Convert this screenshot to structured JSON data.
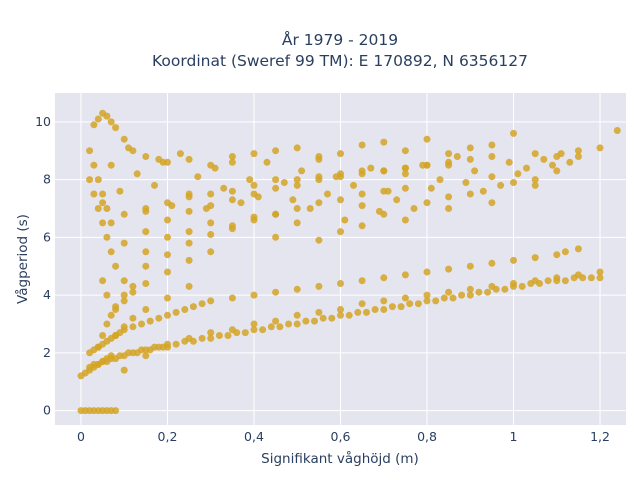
{
  "chart_data": {
    "type": "scatter",
    "title": "År 1979 - 2019",
    "subtitle": "Koordinat (Sweref 99 TM): E 170892, N 6356127",
    "xlabel": "Signifikant våghöjd (m)",
    "ylabel": "Vågperiod (s)",
    "xlim": [
      -0.06,
      1.26
    ],
    "ylim": [
      -0.5,
      11.0
    ],
    "x_tick_values": [
      0,
      0.2,
      0.4,
      0.6,
      0.8,
      1.0,
      1.2
    ],
    "x_tick_labels": [
      "0",
      "0,2",
      "0,4",
      "0,6",
      "0,8",
      "1",
      "1,2"
    ],
    "y_tick_values": [
      0,
      2,
      4,
      6,
      8,
      10
    ],
    "y_tick_labels": [
      "0",
      "2",
      "4",
      "6",
      "8",
      "10"
    ],
    "grid": true,
    "marker_color": "#d4a424",
    "plot_background": "#e5e5ef",
    "legend": "none",
    "series": [
      {
        "x": [
          0.0,
          0.01,
          0.02,
          0.03,
          0.04,
          0.05,
          0.06,
          0.07,
          0.08,
          0.0,
          0.01,
          0.02,
          0.03,
          0.04,
          0.05,
          0.06,
          0.07,
          0.02,
          0.03,
          0.04,
          0.05,
          0.06,
          0.07,
          0.08,
          0.09,
          0.1,
          0.12,
          0.14,
          0.16,
          0.18,
          0.2,
          0.22,
          0.24,
          0.26,
          0.28,
          0.3,
          0.35,
          0.4,
          0.45,
          0.5,
          0.55,
          0.6,
          0.65,
          0.7,
          0.75,
          0.8,
          0.85,
          0.9,
          0.95,
          1.0,
          1.05,
          1.1,
          1.12,
          1.15,
          0.03,
          0.04,
          0.05,
          0.06,
          0.07,
          0.08,
          0.1,
          0.12,
          0.15,
          0.18,
          0.2,
          0.25,
          0.3,
          0.35,
          0.4,
          0.45,
          0.5,
          0.55,
          0.6,
          0.65,
          0.7,
          0.75,
          0.8,
          0.85,
          0.9,
          0.95,
          1.0,
          1.05,
          1.1,
          1.15,
          1.2,
          1.24,
          0.02,
          0.03,
          0.04,
          0.05,
          0.06,
          0.07,
          0.08,
          0.02,
          0.03,
          0.04,
          0.05,
          0.06,
          0.07,
          0.05,
          0.06,
          0.1,
          0.15,
          0.2,
          0.25,
          0.3,
          0.35,
          0.4,
          0.45,
          0.5,
          0.55,
          0.6,
          0.65,
          0.7,
          0.75,
          0.8,
          0.85,
          0.1,
          0.15,
          0.2,
          0.25,
          0.3,
          0.35,
          0.4,
          0.45,
          0.5,
          0.55,
          0.6,
          0.65,
          0.7,
          0.75,
          0.8,
          0.85,
          0.9,
          0.95,
          0.1,
          0.15,
          0.2,
          0.25,
          0.3,
          0.35,
          0.4,
          0.45,
          0.5,
          0.55,
          0.6,
          0.65,
          0.7,
          0.75,
          0.08,
          0.1,
          0.12,
          0.15,
          0.2,
          0.25,
          0.3,
          0.08,
          0.1,
          0.12,
          0.15,
          0.2,
          0.25,
          0.04,
          0.05,
          0.06,
          0.07,
          0.08,
          0.1,
          0.12,
          0.1,
          0.15,
          0.2,
          0.25,
          0.3,
          0.35,
          0.4,
          0.45,
          0.5,
          0.55,
          0.6,
          0.65,
          0.7,
          0.75,
          0.8,
          0.85,
          0.9,
          0.95,
          1.0,
          1.05,
          1.1,
          1.15,
          1.2,
          0.2,
          0.3,
          0.4,
          0.5,
          0.6,
          0.7,
          0.8,
          0.9,
          1.0,
          1.1,
          0.15,
          0.25,
          0.35,
          0.45,
          0.55,
          0.65,
          0.75,
          0.85,
          0.95,
          1.05,
          0.02,
          0.03,
          0.04,
          0.05,
          0.06,
          0.07,
          0.08,
          0.09,
          0.1,
          0.11,
          0.12,
          0.13,
          0.14,
          0.15,
          0.16,
          0.17,
          0.18,
          0.19,
          0.2,
          0.22,
          0.24,
          0.26,
          0.28,
          0.3,
          0.32,
          0.34,
          0.36,
          0.38,
          0.4,
          0.42,
          0.44,
          0.46,
          0.48,
          0.5,
          0.52,
          0.54,
          0.56,
          0.58,
          0.6,
          0.62,
          0.64,
          0.66,
          0.68,
          0.7,
          0.72,
          0.74,
          0.76,
          0.78,
          0.8,
          0.82,
          0.84,
          0.86,
          0.88,
          0.9,
          0.92,
          0.94,
          0.96,
          0.98,
          1.0,
          1.02,
          1.04,
          1.06,
          1.08,
          1.1,
          1.12,
          1.14,
          1.16,
          1.18,
          1.2,
          0.05,
          0.07,
          0.09,
          0.11,
          0.13,
          0.15,
          0.17,
          0.19,
          0.21,
          0.23,
          0.25,
          0.27,
          0.29,
          0.31,
          0.33,
          0.35,
          0.37,
          0.39,
          0.41,
          0.43,
          0.45,
          0.47,
          0.49,
          0.51,
          0.53,
          0.55,
          0.57,
          0.59,
          0.61,
          0.63,
          0.65,
          0.67,
          0.69,
          0.71,
          0.73,
          0.75,
          0.77,
          0.79,
          0.81,
          0.83,
          0.85,
          0.87,
          0.89,
          0.91,
          0.93,
          0.95,
          0.97,
          0.99,
          1.01,
          1.03,
          1.05,
          1.07,
          1.09,
          1.11,
          1.13,
          1.15
        ],
        "y": [
          0.0,
          0.0,
          0.0,
          0.0,
          0.0,
          0.0,
          0.0,
          0.0,
          0.0,
          1.2,
          1.3,
          1.4,
          1.5,
          1.6,
          1.7,
          1.8,
          1.9,
          2.0,
          2.1,
          2.2,
          2.3,
          2.4,
          2.5,
          2.6,
          2.7,
          2.8,
          2.9,
          3.0,
          3.1,
          3.2,
          3.3,
          3.4,
          3.5,
          3.6,
          3.7,
          3.8,
          3.9,
          4.0,
          4.1,
          4.2,
          4.3,
          4.4,
          4.5,
          4.6,
          4.7,
          4.8,
          4.9,
          5.0,
          5.1,
          5.2,
          5.3,
          5.4,
          5.5,
          5.6,
          9.9,
          10.1,
          10.3,
          10.2,
          10.0,
          9.8,
          9.4,
          9.0,
          8.8,
          8.7,
          8.6,
          8.7,
          8.5,
          8.6,
          8.9,
          9.0,
          9.1,
          8.8,
          8.9,
          9.2,
          9.3,
          9.0,
          9.4,
          8.9,
          9.1,
          9.2,
          9.6,
          8.9,
          8.8,
          9.0,
          9.1,
          9.7,
          8.0,
          7.5,
          7.0,
          6.5,
          6.0,
          5.5,
          5.0,
          9.0,
          8.5,
          8.0,
          7.5,
          7.0,
          6.5,
          4.5,
          4.0,
          6.8,
          7.0,
          7.2,
          7.4,
          7.5,
          7.6,
          7.8,
          8.0,
          8.0,
          8.1,
          8.2,
          8.3,
          8.3,
          8.4,
          8.5,
          8.5,
          5.8,
          6.2,
          6.6,
          6.9,
          7.1,
          7.3,
          7.5,
          7.7,
          7.8,
          8.0,
          8.1,
          8.2,
          8.3,
          8.4,
          8.5,
          8.6,
          8.7,
          8.8,
          4.5,
          5.0,
          5.4,
          5.8,
          6.1,
          6.3,
          6.6,
          6.8,
          7.0,
          7.2,
          7.3,
          7.5,
          7.6,
          7.7,
          3.5,
          3.8,
          4.1,
          4.4,
          4.8,
          5.2,
          5.5,
          2.6,
          2.9,
          3.2,
          3.5,
          3.9,
          4.3,
          2.2,
          2.6,
          3.0,
          3.3,
          3.6,
          4.0,
          4.3,
          1.4,
          1.9,
          2.2,
          2.5,
          2.7,
          2.8,
          3.0,
          3.1,
          3.3,
          3.4,
          3.5,
          3.7,
          3.8,
          3.9,
          4.0,
          4.1,
          4.2,
          4.3,
          4.4,
          4.5,
          4.6,
          4.7,
          4.8,
          6.0,
          6.5,
          6.7,
          6.5,
          6.2,
          6.8,
          7.2,
          7.5,
          7.9,
          8.3,
          5.5,
          6.2,
          6.4,
          6.0,
          5.9,
          6.4,
          6.6,
          7.0,
          7.2,
          7.8,
          1.5,
          1.6,
          1.6,
          1.7,
          1.7,
          1.8,
          1.8,
          1.9,
          1.9,
          2.0,
          2.0,
          2.0,
          2.1,
          2.1,
          2.1,
          2.2,
          2.2,
          2.2,
          2.3,
          2.3,
          2.4,
          2.4,
          2.5,
          2.5,
          2.6,
          2.6,
          2.7,
          2.7,
          2.8,
          2.8,
          2.9,
          2.9,
          3.0,
          3.0,
          3.1,
          3.1,
          3.2,
          3.2,
          3.3,
          3.3,
          3.4,
          3.4,
          3.5,
          3.5,
          3.6,
          3.6,
          3.7,
          3.7,
          3.8,
          3.8,
          3.9,
          3.9,
          4.0,
          4.0,
          4.1,
          4.1,
          4.2,
          4.2,
          4.3,
          4.3,
          4.4,
          4.4,
          4.5,
          4.5,
          4.5,
          4.6,
          4.6,
          4.6,
          4.6,
          7.2,
          8.5,
          7.6,
          9.1,
          8.2,
          6.9,
          7.8,
          8.6,
          7.1,
          8.9,
          7.5,
          8.1,
          7.0,
          8.4,
          7.7,
          8.8,
          7.2,
          8.0,
          7.4,
          8.6,
          6.8,
          7.9,
          7.3,
          8.3,
          7.0,
          8.7,
          7.5,
          8.1,
          6.6,
          7.8,
          7.1,
          8.4,
          6.9,
          7.6,
          7.3,
          8.2,
          7.0,
          8.5,
          7.7,
          8.0,
          7.4,
          8.8,
          7.9,
          8.3,
          7.6,
          8.1,
          7.8,
          8.6,
          8.2,
          8.4,
          8.0,
          8.7,
          8.5,
          8.9,
          8.6,
          8.8
        ]
      }
    ]
  }
}
